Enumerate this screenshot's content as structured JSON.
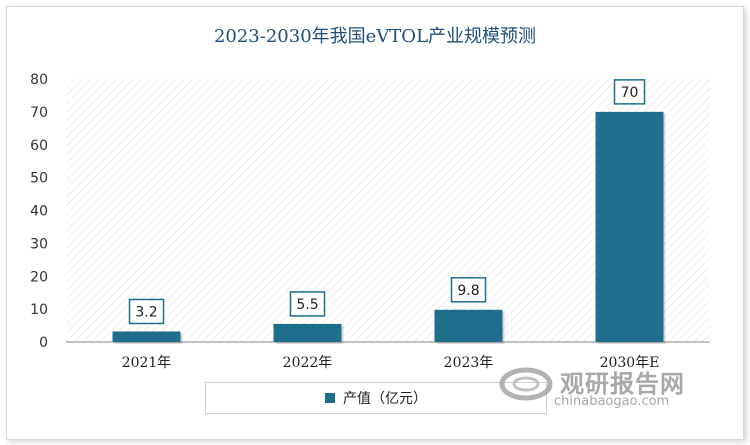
{
  "chart_data": {
    "type": "bar",
    "title": "2023-2030年我国eVTOL产业规模预测",
    "categories": [
      "2021年",
      "2022年",
      "2023年",
      "2030年E"
    ],
    "series": [
      {
        "name": "产值（亿元）",
        "values": [
          3.2,
          5.5,
          9.8,
          70
        ]
      }
    ],
    "data_labels": [
      "3.2",
      "5.5",
      "9.8",
      "70"
    ],
    "yticks": [
      "0",
      "10",
      "20",
      "30",
      "40",
      "50",
      "60",
      "70",
      "80"
    ],
    "ylim": [
      0,
      80
    ],
    "xlabel": "",
    "ylabel": "",
    "grid": false,
    "legend_position": "bottom",
    "bar_color": "#1f6e8c"
  },
  "watermark": {
    "text_cn": "观研报告网",
    "text_en": "chinabaogao.com"
  }
}
